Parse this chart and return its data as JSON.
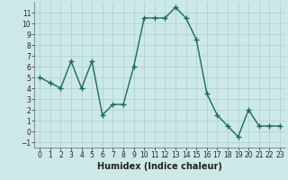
{
  "x": [
    0,
    1,
    2,
    3,
    4,
    5,
    6,
    7,
    8,
    9,
    10,
    11,
    12,
    13,
    14,
    15,
    16,
    17,
    18,
    19,
    20,
    21,
    22,
    23
  ],
  "y": [
    5,
    4.5,
    4,
    6.5,
    4,
    6.5,
    1.5,
    2.5,
    2.5,
    6,
    10.5,
    10.5,
    10.5,
    11.5,
    10.5,
    8.5,
    3.5,
    1.5,
    0.5,
    -0.5,
    2,
    0.5,
    0.5,
    0.5
  ],
  "line_color": "#1a6b5a",
  "marker": "+",
  "markersize": 4,
  "linewidth": 1.0,
  "bg_color": "#cce9e7",
  "grid_color": "#aacfcc",
  "xlabel": "Humidex (Indice chaleur)",
  "xlabel_fontsize": 7,
  "xlim": [
    -0.5,
    23.5
  ],
  "ylim": [
    -1.5,
    12
  ],
  "yticks": [
    -1,
    0,
    1,
    2,
    3,
    4,
    5,
    6,
    7,
    8,
    9,
    10,
    11
  ],
  "xticks": [
    0,
    1,
    2,
    3,
    4,
    5,
    6,
    7,
    8,
    9,
    10,
    11,
    12,
    13,
    14,
    15,
    16,
    17,
    18,
    19,
    20,
    21,
    22,
    23
  ],
  "tick_fontsize": 5.5
}
